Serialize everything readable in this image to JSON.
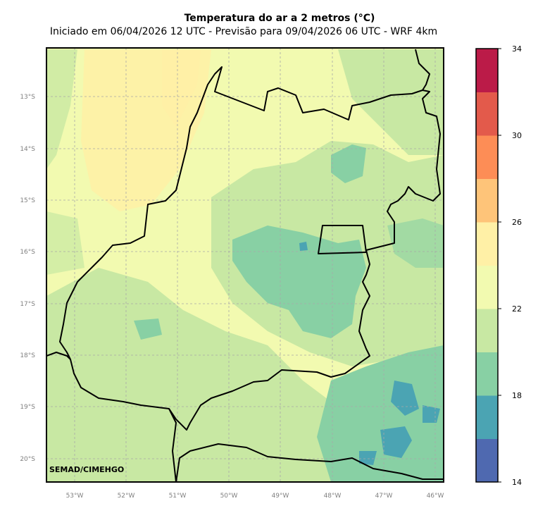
{
  "title": "Temperatura do ar a 2 metros (°C)",
  "subtitle": "Iniciado em 06/04/2026 12 UTC - Previsão para 09/04/2026 06 UTC - WRF 4km",
  "credit": "SEMAD/CIMEHGO",
  "lat_labels": [
    "13°S",
    "14°S",
    "15°S",
    "16°S",
    "17°S",
    "18°S",
    "19°S",
    "20°S"
  ],
  "lon_labels": [
    "53°W",
    "52°W",
    "51°W",
    "50°W",
    "49°W",
    "48°W",
    "47°W",
    "46°W"
  ],
  "colorbar": {
    "tick_labels": [
      "14",
      "18",
      "22",
      "26",
      "30",
      "34"
    ],
    "colors": [
      "#4f69b0",
      "#4ba4b3",
      "#88d0a4",
      "#c8e8a3",
      "#f2fab0",
      "#fff0a6",
      "#fec479",
      "#fd8d56",
      "#e35a4b",
      "#bb1b48"
    ]
  },
  "colors": {
    "cold_bands": "#4ba4b3",
    "mid_green": "#88d0a4",
    "light_green": "#c8e8a3",
    "pale_yellow": "#f2fab0",
    "warm_yellow": "#fff0a6"
  }
}
